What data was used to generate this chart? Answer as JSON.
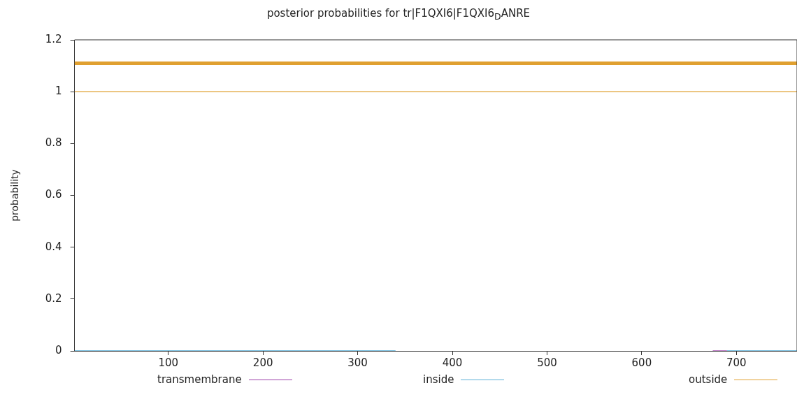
{
  "chart_data": {
    "type": "line",
    "title": "posterior probabilities for tr|F1QXI6|F1QXI6$_{D}$ANRE",
    "ylabel": "probability",
    "xlim": [
      1,
      764
    ],
    "xticks": [
      100,
      200,
      300,
      400,
      500,
      600,
      700
    ],
    "ylim": [
      0,
      1.2
    ],
    "yticks": [
      0,
      0.2,
      0.4,
      0.6,
      0.8,
      1,
      1.2
    ],
    "grid": false,
    "legend": "bottom",
    "marker": "none",
    "line_style": "solid",
    "series": [
      {
        "name": "transmembrane",
        "color": "#9b3fa8",
        "x": [
          675,
          690
        ],
        "values": [
          0,
          0
        ]
      },
      {
        "name": "inside",
        "color": "#5aaed6",
        "x": [
          1,
          340,
          341,
          690,
          764
        ],
        "values": [
          0,
          0,
          null,
          0,
          0
        ]
      },
      {
        "name": "outside",
        "color": "#e0a030",
        "x": [
          1,
          764
        ],
        "values": [
          1,
          1
        ]
      },
      {
        "color": "#e0a030",
        "x": [
          1,
          764
        ],
        "values": [
          1.11,
          1.11
        ]
      }
    ]
  }
}
